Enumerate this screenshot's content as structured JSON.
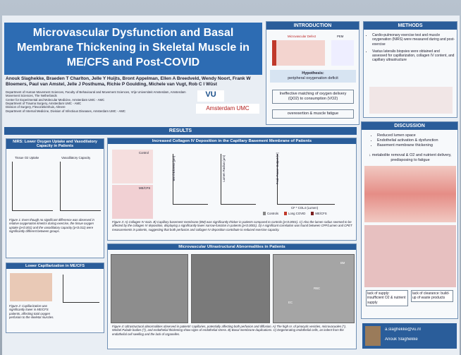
{
  "header": {
    "title": "Microvascular Dysfunction and Basal Membrane Thickening in Skeletal Muscle in ME/CFS and Post-COVID",
    "authors": "Anouk Slaghekke, Braeden T Charlton, Jelle Y Huijts, Bront Appelman, Ellen A Breedveld, Wendy Noort, Frank W Bloemers, Paul van Amstel, Jelle J Posthuma, Richie P Goulding, Michele van Vugt, Rob C I Wüst",
    "affiliations": [
      "Department of Human Movement Sciences, Faculty of Behavioural and Movement Sciences, Vrije Universiteit Amsterdam, Amsterdam Movement Sciences, The Netherlands",
      "Center for Experimental and Molecular Medicine, Amsterdam UMC - AMC",
      "Department of Trauma Surgery, Amsterdam UMC - AMC",
      "Division of Surgery, Flevoziekenhuis, Almere",
      "Department of Internal Medicine, Division of Infectious Diseases, Amsterdam UMC - AMC"
    ],
    "logos": [
      "VU",
      "Amsterdam UMC"
    ]
  },
  "intro": {
    "heading": "INTRODUCTION",
    "labels": [
      "Microvascular Defect",
      "PEM"
    ],
    "hypothesis": "Hypothesis:",
    "lines": [
      "peripheral oxygenation deficit",
      "Ineffective matching of oxygen delivery (QO2) to consumption (VO2)",
      "overexertion & muscle fatigue"
    ]
  },
  "methods": {
    "heading": "METHODS",
    "bullets": [
      "Cardio-pulmonary exercise test and muscle oxygenation (NIRS) were measured during and post-exercise",
      "Vastus lateralis biopsies were obtained and assessed for capillarization, collagen IV content, and capillary ultrastructure"
    ]
  },
  "results": {
    "heading": "RESULTS",
    "nirs": {
      "heading": "NIRS: Lower Oxygen Uptake and Vasodilatory Capacity in Patients",
      "panels": [
        "Tissue O2 Uptake",
        "Vasodilatory Capacity"
      ],
      "caption": "Figure 1: Even though no significant difference was observed in relative oxygenation kinetics during exercise, the tissue oxygen uptake (p<0.001) and the vasodilatory capacity (p<0.011) were significantly different between groups."
    },
    "capillarization": {
      "heading": "Lower Capillarization in ME/CFS",
      "caption": "Figure 2: Capillarization was significantly lower in ME/CFS patients, affecting total oxygen perfusion to the skeletal muscles."
    },
    "collagen": {
      "heading": "Increased Collagen IV Deposition in the Capillary Basement Membrane of Patients",
      "image_labels": [
        "Control",
        "ME/CFS"
      ],
      "axes": [
        "BM thickness (µm)",
        "Lumen Radius (µm)",
        "Peak Power Output (W)",
        "CF * COL4 (Lumen)"
      ],
      "legend": [
        "Controls",
        "Long COVID",
        "ME/CFS"
      ],
      "caption": "Figure 3: A) Collagen IV stain. B) Capillary basement membrane (BM) was significantly thicker in patients compared to controls (p<0.0001). C) Also the lumen radius seemed to be affected by the collagen IV deposition, displaying a significantly lower narrow-function in patients (p<0.0001). D) A significant correlation was found between CPF/Lumen and CPET measurements in patients, suggesting that both perfusion and collagen IV deposition contribute to reduced exercise capacity."
    },
    "ultra": {
      "heading": "Microvascular Ultrastructural Abnormalities in Patients",
      "labels": [
        "BM",
        "RBC",
        "EC"
      ],
      "caption": "Figure 4: Ultrastructural abnormalities observed in patients' capillaries, potentially affecting both perfusion and diffusion. A) The high nr. of pinocytic vesicles, microvacuoles (*), Weibel Palade bodies (†), and endothelial thickening show signs of endothelial stress. B) Basal membrane duplications. C) Degenerating endothelial cells, an indent from the endothelial cell swelling and the lack of organelles."
    }
  },
  "discussion": {
    "heading": "DISCUSSION",
    "bullets": [
      "Reduced lumen space",
      "Endothelial activation & dysfunction",
      "Basement membrane thickening"
    ],
    "consequence": "↓ metabolite removal & O2 and nutrient delivery, predisposing to fatigue",
    "supply": "lack of supply: insufficient O2 & nutrient supply",
    "clearance": "lack of clearance: build-up of waste products"
  },
  "contact": {
    "email": "a.slaghekke@vu.nl",
    "name": "Anouk Slaghekke"
  }
}
